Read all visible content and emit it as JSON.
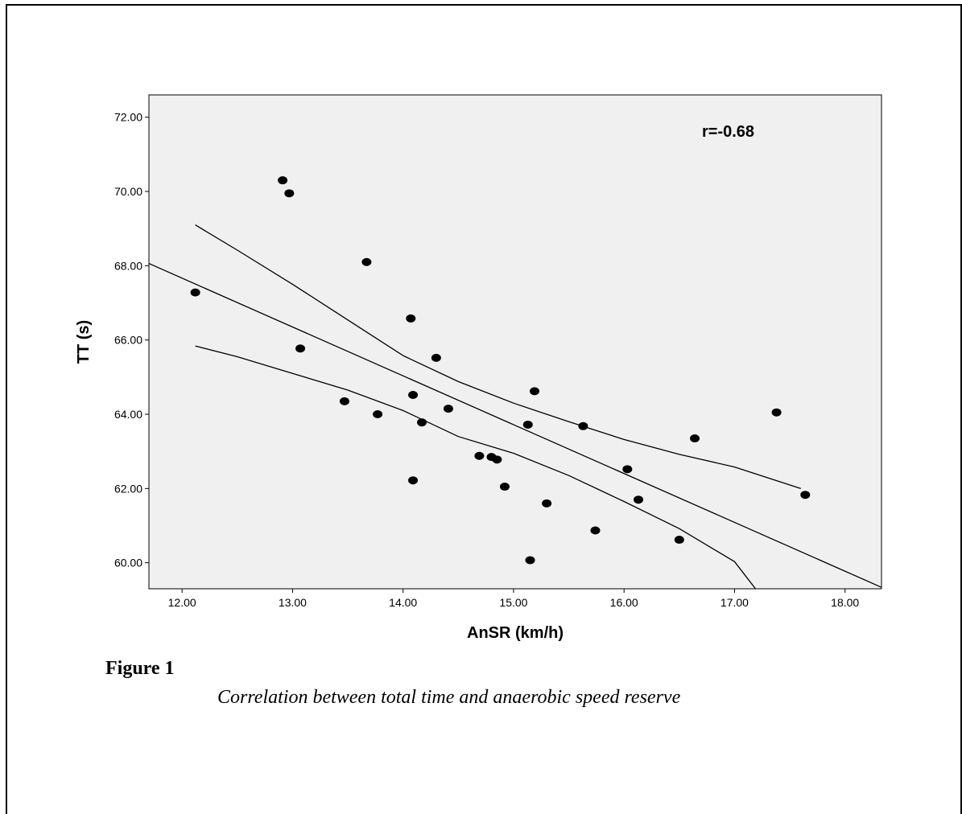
{
  "chart_data": {
    "type": "scatter",
    "title": "",
    "xlabel": "AnSR (km/h)",
    "ylabel": "TT (s)",
    "annotation": "r=-0.68",
    "xlim": [
      11.7,
      18.33
    ],
    "ylim": [
      59.3,
      72.6
    ],
    "x_ticks": [
      12,
      13,
      14,
      15,
      16,
      17,
      18
    ],
    "x_tick_labels": [
      "12.00",
      "13.00",
      "14.00",
      "15.00",
      "16.00",
      "17.00",
      "18.00"
    ],
    "y_ticks": [
      60,
      62,
      64,
      66,
      68,
      70,
      72
    ],
    "y_tick_labels": [
      "60.00",
      "62.00",
      "64.00",
      "66.00",
      "68.00",
      "70.00",
      "72.00"
    ],
    "grid": false,
    "background_color": "#f0f0f0",
    "marker_color": "#000000",
    "points": [
      {
        "x": 12.12,
        "y": 67.28
      },
      {
        "x": 12.91,
        "y": 70.3
      },
      {
        "x": 12.97,
        "y": 69.95
      },
      {
        "x": 13.07,
        "y": 65.77
      },
      {
        "x": 13.47,
        "y": 64.35
      },
      {
        "x": 13.67,
        "y": 68.1
      },
      {
        "x": 13.77,
        "y": 64.0
      },
      {
        "x": 14.07,
        "y": 66.58
      },
      {
        "x": 14.09,
        "y": 64.52
      },
      {
        "x": 14.09,
        "y": 62.22
      },
      {
        "x": 14.17,
        "y": 63.78
      },
      {
        "x": 14.3,
        "y": 65.52
      },
      {
        "x": 14.41,
        "y": 64.15
      },
      {
        "x": 14.69,
        "y": 62.88
      },
      {
        "x": 14.8,
        "y": 62.85
      },
      {
        "x": 14.85,
        "y": 62.78
      },
      {
        "x": 14.92,
        "y": 62.05
      },
      {
        "x": 15.13,
        "y": 63.72
      },
      {
        "x": 15.15,
        "y": 60.07
      },
      {
        "x": 15.19,
        "y": 64.62
      },
      {
        "x": 15.3,
        "y": 61.6
      },
      {
        "x": 15.63,
        "y": 63.68
      },
      {
        "x": 15.74,
        "y": 60.87
      },
      {
        "x": 16.03,
        "y": 62.52
      },
      {
        "x": 16.13,
        "y": 61.7
      },
      {
        "x": 16.5,
        "y": 60.62
      },
      {
        "x": 16.64,
        "y": 63.35
      },
      {
        "x": 17.38,
        "y": 64.05
      },
      {
        "x": 17.64,
        "y": 61.83
      }
    ],
    "fit_line": {
      "x": [
        11.7,
        18.33
      ],
      "y": [
        68.06,
        59.34
      ]
    },
    "ci_upper": {
      "x": [
        12.12,
        12.5,
        13.0,
        13.5,
        14.0,
        14.5,
        15.0,
        15.5,
        16.0,
        16.5,
        17.0,
        17.6
      ],
      "y": [
        69.1,
        68.42,
        67.5,
        66.54,
        65.58,
        64.88,
        64.3,
        63.8,
        63.32,
        62.92,
        62.58,
        62.0
      ]
    },
    "ci_lower": {
      "x": [
        12.12,
        12.5,
        13.0,
        13.5,
        14.0,
        14.5,
        15.0,
        15.5,
        16.0,
        16.5,
        17.0,
        17.19
      ],
      "y": [
        65.84,
        65.55,
        65.1,
        64.65,
        64.1,
        63.4,
        62.95,
        62.35,
        61.65,
        60.92,
        60.03,
        59.3
      ]
    }
  },
  "figure": {
    "label": "Figure 1",
    "caption": "Correlation between total time and anaerobic speed reserve"
  }
}
